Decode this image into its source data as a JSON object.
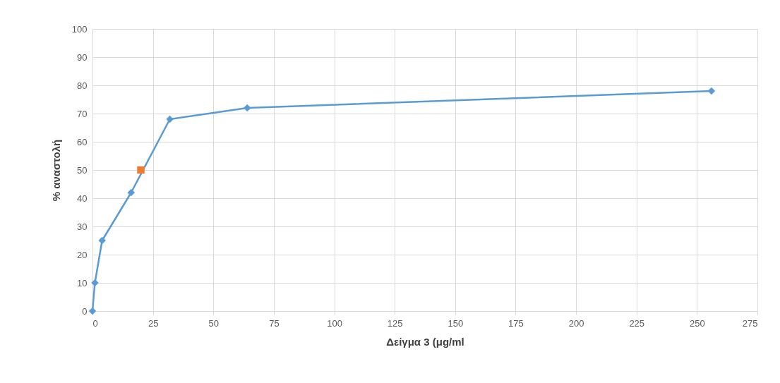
{
  "chart_data": {
    "type": "line",
    "xlabel": "Δείγμα 3 (μg/ml",
    "ylabel": "% αναστολή",
    "series": [
      {
        "marker": "diamond",
        "color": "#5b9bd5",
        "x": [
          0,
          1,
          4,
          16,
          32,
          64,
          256
        ],
        "values": [
          0,
          10,
          25,
          42,
          68,
          72,
          78
        ]
      },
      {
        "type": "scatter",
        "marker": "square",
        "color": "#ed7d31",
        "x": [
          20
        ],
        "values": [
          50
        ]
      }
    ],
    "xlim": [
      0,
      275
    ],
    "xticks": [
      0,
      25,
      50,
      75,
      100,
      125,
      150,
      175,
      200,
      225,
      250,
      275
    ],
    "ylim": [
      0,
      100
    ],
    "yticks": [
      0,
      10,
      20,
      30,
      40,
      50,
      60,
      70,
      80,
      90,
      100
    ],
    "grid": true
  }
}
